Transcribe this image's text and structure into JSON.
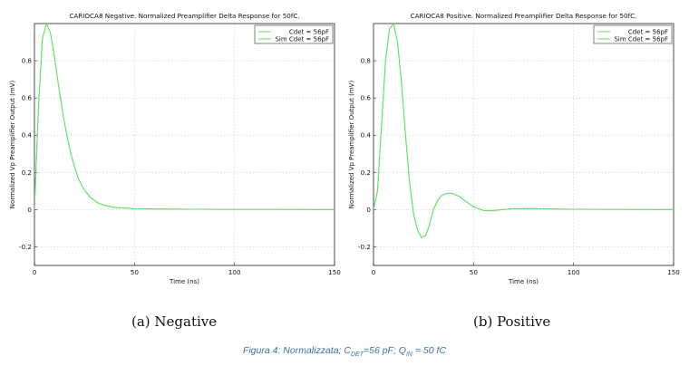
{
  "colors": {
    "curve": "#66dd66",
    "caption": "#3f6fa8",
    "grid": "#bdbdbd"
  },
  "chart_data": [
    {
      "type": "line",
      "title": "CARIOCA8 Negative. Normalized Preamplifier Delta Response for 50fC.",
      "xlabel": "Time (ns)",
      "ylabel": "Normalized Vp Preamplifier Output (mV)",
      "xlim": [
        0,
        150
      ],
      "ylim": [
        -0.3,
        1.0
      ],
      "xticks": [
        "0",
        "50",
        "100",
        "150"
      ],
      "yticks": [
        "-0.2",
        "0",
        "0.2",
        "0.4",
        "0.6",
        "0.8"
      ],
      "grid": true,
      "legend_position": "top-right",
      "legend": [
        "Cdet = 56pF",
        "Sim Cdet = 56pF"
      ],
      "series": [
        {
          "name": "Cdet = 56pF",
          "x": [
            0,
            2,
            4,
            6,
            8,
            10,
            12,
            14,
            16,
            18,
            20,
            22,
            25,
            28,
            32,
            36,
            40,
            45,
            50,
            60,
            80,
            100,
            120,
            150
          ],
          "y": [
            0.0,
            0.55,
            0.92,
            1.0,
            0.95,
            0.82,
            0.67,
            0.53,
            0.41,
            0.31,
            0.23,
            0.165,
            0.105,
            0.065,
            0.035,
            0.02,
            0.012,
            0.008,
            0.005,
            0.003,
            0.002,
            0.001,
            0.001,
            0.0
          ]
        },
        {
          "name": "Sim Cdet = 56pF",
          "x": [
            0,
            2,
            4,
            6,
            8,
            10,
            12,
            14,
            16,
            18,
            20,
            22,
            25,
            28,
            32,
            36,
            40,
            45,
            50,
            60,
            80,
            100,
            120,
            150
          ],
          "y": [
            0.0,
            0.55,
            0.92,
            1.0,
            0.95,
            0.82,
            0.67,
            0.53,
            0.41,
            0.31,
            0.23,
            0.165,
            0.105,
            0.065,
            0.035,
            0.02,
            0.012,
            0.008,
            0.005,
            0.003,
            0.002,
            0.001,
            0.001,
            0.0
          ]
        }
      ]
    },
    {
      "type": "line",
      "title": "CARIOCA8 Positive. Normalized Preamplifier Delta Response for 50fC.",
      "xlabel": "Time (ns)",
      "ylabel": "Normalized Vp Preamplifier Output (mV)",
      "xlim": [
        0,
        150
      ],
      "ylim": [
        -0.3,
        1.0
      ],
      "xticks": [
        "0",
        "50",
        "100",
        "150"
      ],
      "yticks": [
        "-0.2",
        "0",
        "0.2",
        "0.4",
        "0.6",
        "0.8"
      ],
      "grid": true,
      "legend_position": "top-right",
      "legend": [
        "Cdet = 56pF",
        "Sim Cdet = 56pF"
      ],
      "series": [
        {
          "name": "Cdet = 56pF",
          "x": [
            0,
            2,
            4,
            6,
            8,
            10,
            12,
            14,
            16,
            18,
            20,
            22,
            24,
            26,
            28,
            30,
            32,
            34,
            36,
            38,
            40,
            43,
            46,
            50,
            55,
            60,
            70,
            80,
            100,
            120,
            150
          ],
          "y": [
            0.0,
            0.1,
            0.45,
            0.8,
            0.97,
            1.0,
            0.9,
            0.68,
            0.4,
            0.15,
            -0.02,
            -0.11,
            -0.15,
            -0.14,
            -0.08,
            0.0,
            0.05,
            0.075,
            0.085,
            0.088,
            0.085,
            0.07,
            0.045,
            0.015,
            -0.005,
            -0.005,
            0.005,
            0.005,
            0.002,
            0.001,
            0.0
          ]
        },
        {
          "name": "Sim Cdet = 56pF",
          "x": [
            0,
            2,
            4,
            6,
            8,
            10,
            12,
            14,
            16,
            18,
            20,
            22,
            24,
            26,
            28,
            30,
            32,
            34,
            36,
            38,
            40,
            43,
            46,
            50,
            55,
            60,
            70,
            80,
            100,
            120,
            150
          ],
          "y": [
            0.0,
            0.1,
            0.45,
            0.8,
            0.97,
            1.0,
            0.9,
            0.68,
            0.4,
            0.15,
            -0.02,
            -0.11,
            -0.15,
            -0.14,
            -0.08,
            0.0,
            0.05,
            0.075,
            0.085,
            0.088,
            0.085,
            0.07,
            0.045,
            0.015,
            -0.005,
            -0.005,
            0.005,
            0.005,
            0.002,
            0.001,
            0.0
          ]
        }
      ]
    }
  ],
  "subcaptions": [
    "(a) Negative",
    "(b) Positive"
  ],
  "figure_caption": {
    "prefix": "Figura 4: Normalizzata;  C",
    "sub1": "DET",
    "mid": "=56 pF; Q",
    "sub2": "IN",
    "suffix": " = 50 fC"
  }
}
